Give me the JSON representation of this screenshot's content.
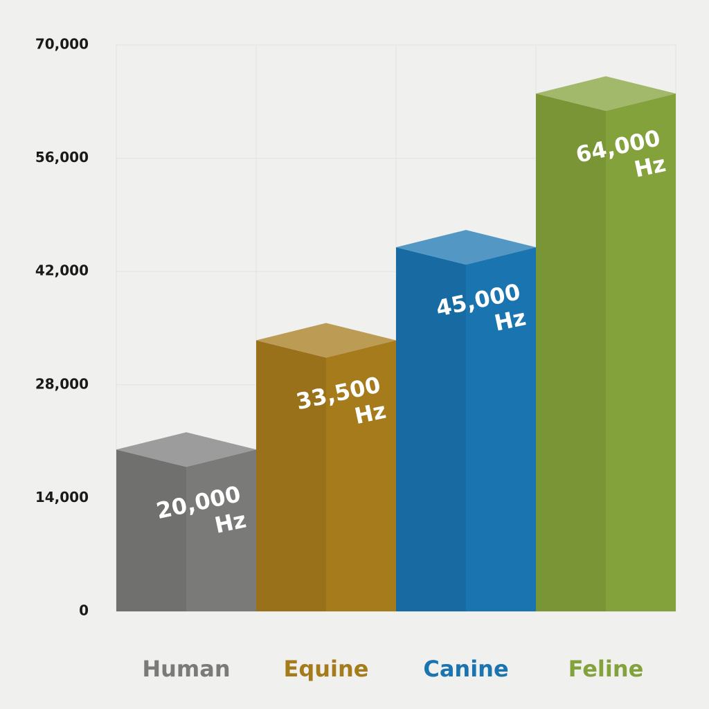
{
  "chart_data": {
    "type": "bar3d",
    "categories": [
      "Human",
      "Equine",
      "Canine",
      "Feline"
    ],
    "values": [
      20000,
      33500,
      45000,
      64000
    ],
    "value_labels": [
      "20,000 Hz",
      "33,500 Hz",
      "45,000 Hz",
      "64,000 Hz"
    ],
    "colors": [
      "#7a7b79",
      "#a57b1c",
      "#1a74b0",
      "#83a23b"
    ],
    "ylim": [
      0,
      70000
    ],
    "yticks": [
      0,
      {
        "value": 14000,
        "label": "14,000"
      },
      {
        "value": 28000,
        "label": "28,000"
      },
      {
        "value": 42000,
        "label": "42,000"
      },
      {
        "value": 56000,
        "label": "56,000"
      },
      {
        "value": 70000,
        "label": "70,000"
      }
    ],
    "grid": true
  }
}
